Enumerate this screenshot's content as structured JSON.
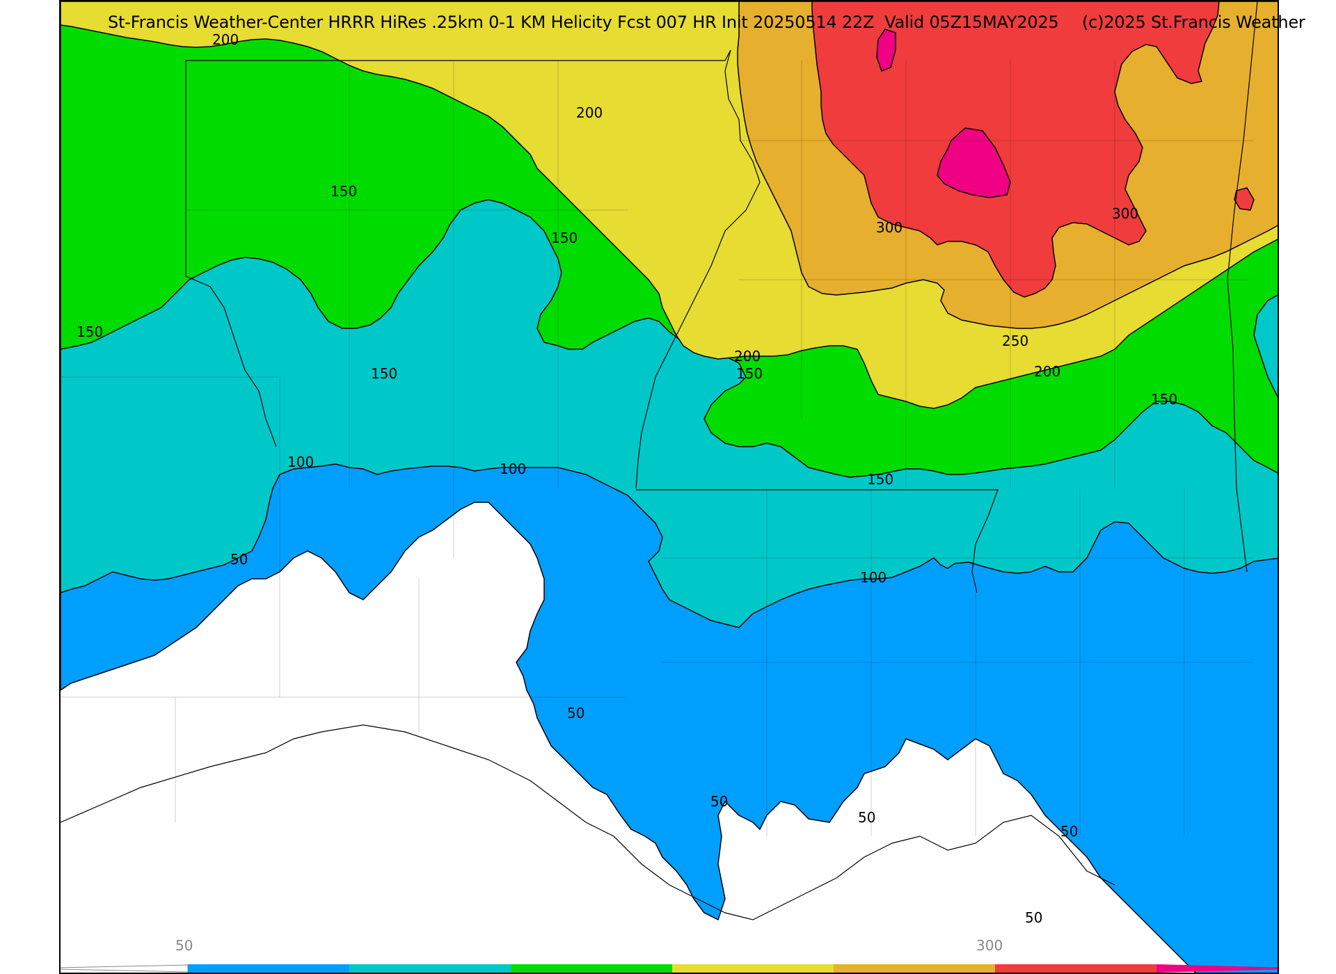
{
  "map": {
    "title": "St-Francis Weather-Center HRRR HiRes .25km 0-1 KM Helicity Fcst 007 HR Init 20250514 22Z  Valid 05Z15MAY2025",
    "copyright": "(c)2025 St.Francis Weather",
    "contour_labels": [
      {
        "id": "c200-nw",
        "text": "200"
      },
      {
        "id": "c200-n",
        "text": "200"
      },
      {
        "id": "c150-nw",
        "text": "150"
      },
      {
        "id": "c150-n",
        "text": "150"
      },
      {
        "id": "c150-w",
        "text": "150"
      },
      {
        "id": "c150-c",
        "text": "150"
      },
      {
        "id": "c300-w",
        "text": "300"
      },
      {
        "id": "c300-e",
        "text": "300"
      },
      {
        "id": "c250",
        "text": "250"
      },
      {
        "id": "c200-e",
        "text": "200"
      },
      {
        "id": "c200-c",
        "text": "200"
      },
      {
        "id": "c150-cc",
        "text": "150"
      },
      {
        "id": "c150-e",
        "text": "150"
      },
      {
        "id": "c150-s",
        "text": "150"
      },
      {
        "id": "c100-w",
        "text": "100"
      },
      {
        "id": "c100-c",
        "text": "100"
      },
      {
        "id": "c100-e",
        "text": "100"
      },
      {
        "id": "c50-w",
        "text": "50"
      },
      {
        "id": "c50-c",
        "text": "50"
      },
      {
        "id": "c50-s1",
        "text": "50"
      },
      {
        "id": "c50-s2",
        "text": "50"
      },
      {
        "id": "c50-s3",
        "text": "50"
      },
      {
        "id": "c50-s4",
        "text": "50"
      }
    ]
  },
  "colorbar": {
    "tick_labels": [
      "50",
      "300"
    ],
    "colors": [
      "#009ffe",
      "#00c8c8",
      "#00dc00",
      "#e6dc32",
      "#e6af2d",
      "#f03c3c",
      "#f00082"
    ]
  },
  "colors": {
    "level_0_50": "#ffffff",
    "level_50_100": "#009ffe",
    "level_100_150": "#00c8c8",
    "level_150_200": "#00dc00",
    "level_200_250": "#e6dc32",
    "level_250_300": "#e6af2d",
    "level_300_350": "#f03c3c",
    "level_350_plus": "#f00082"
  }
}
